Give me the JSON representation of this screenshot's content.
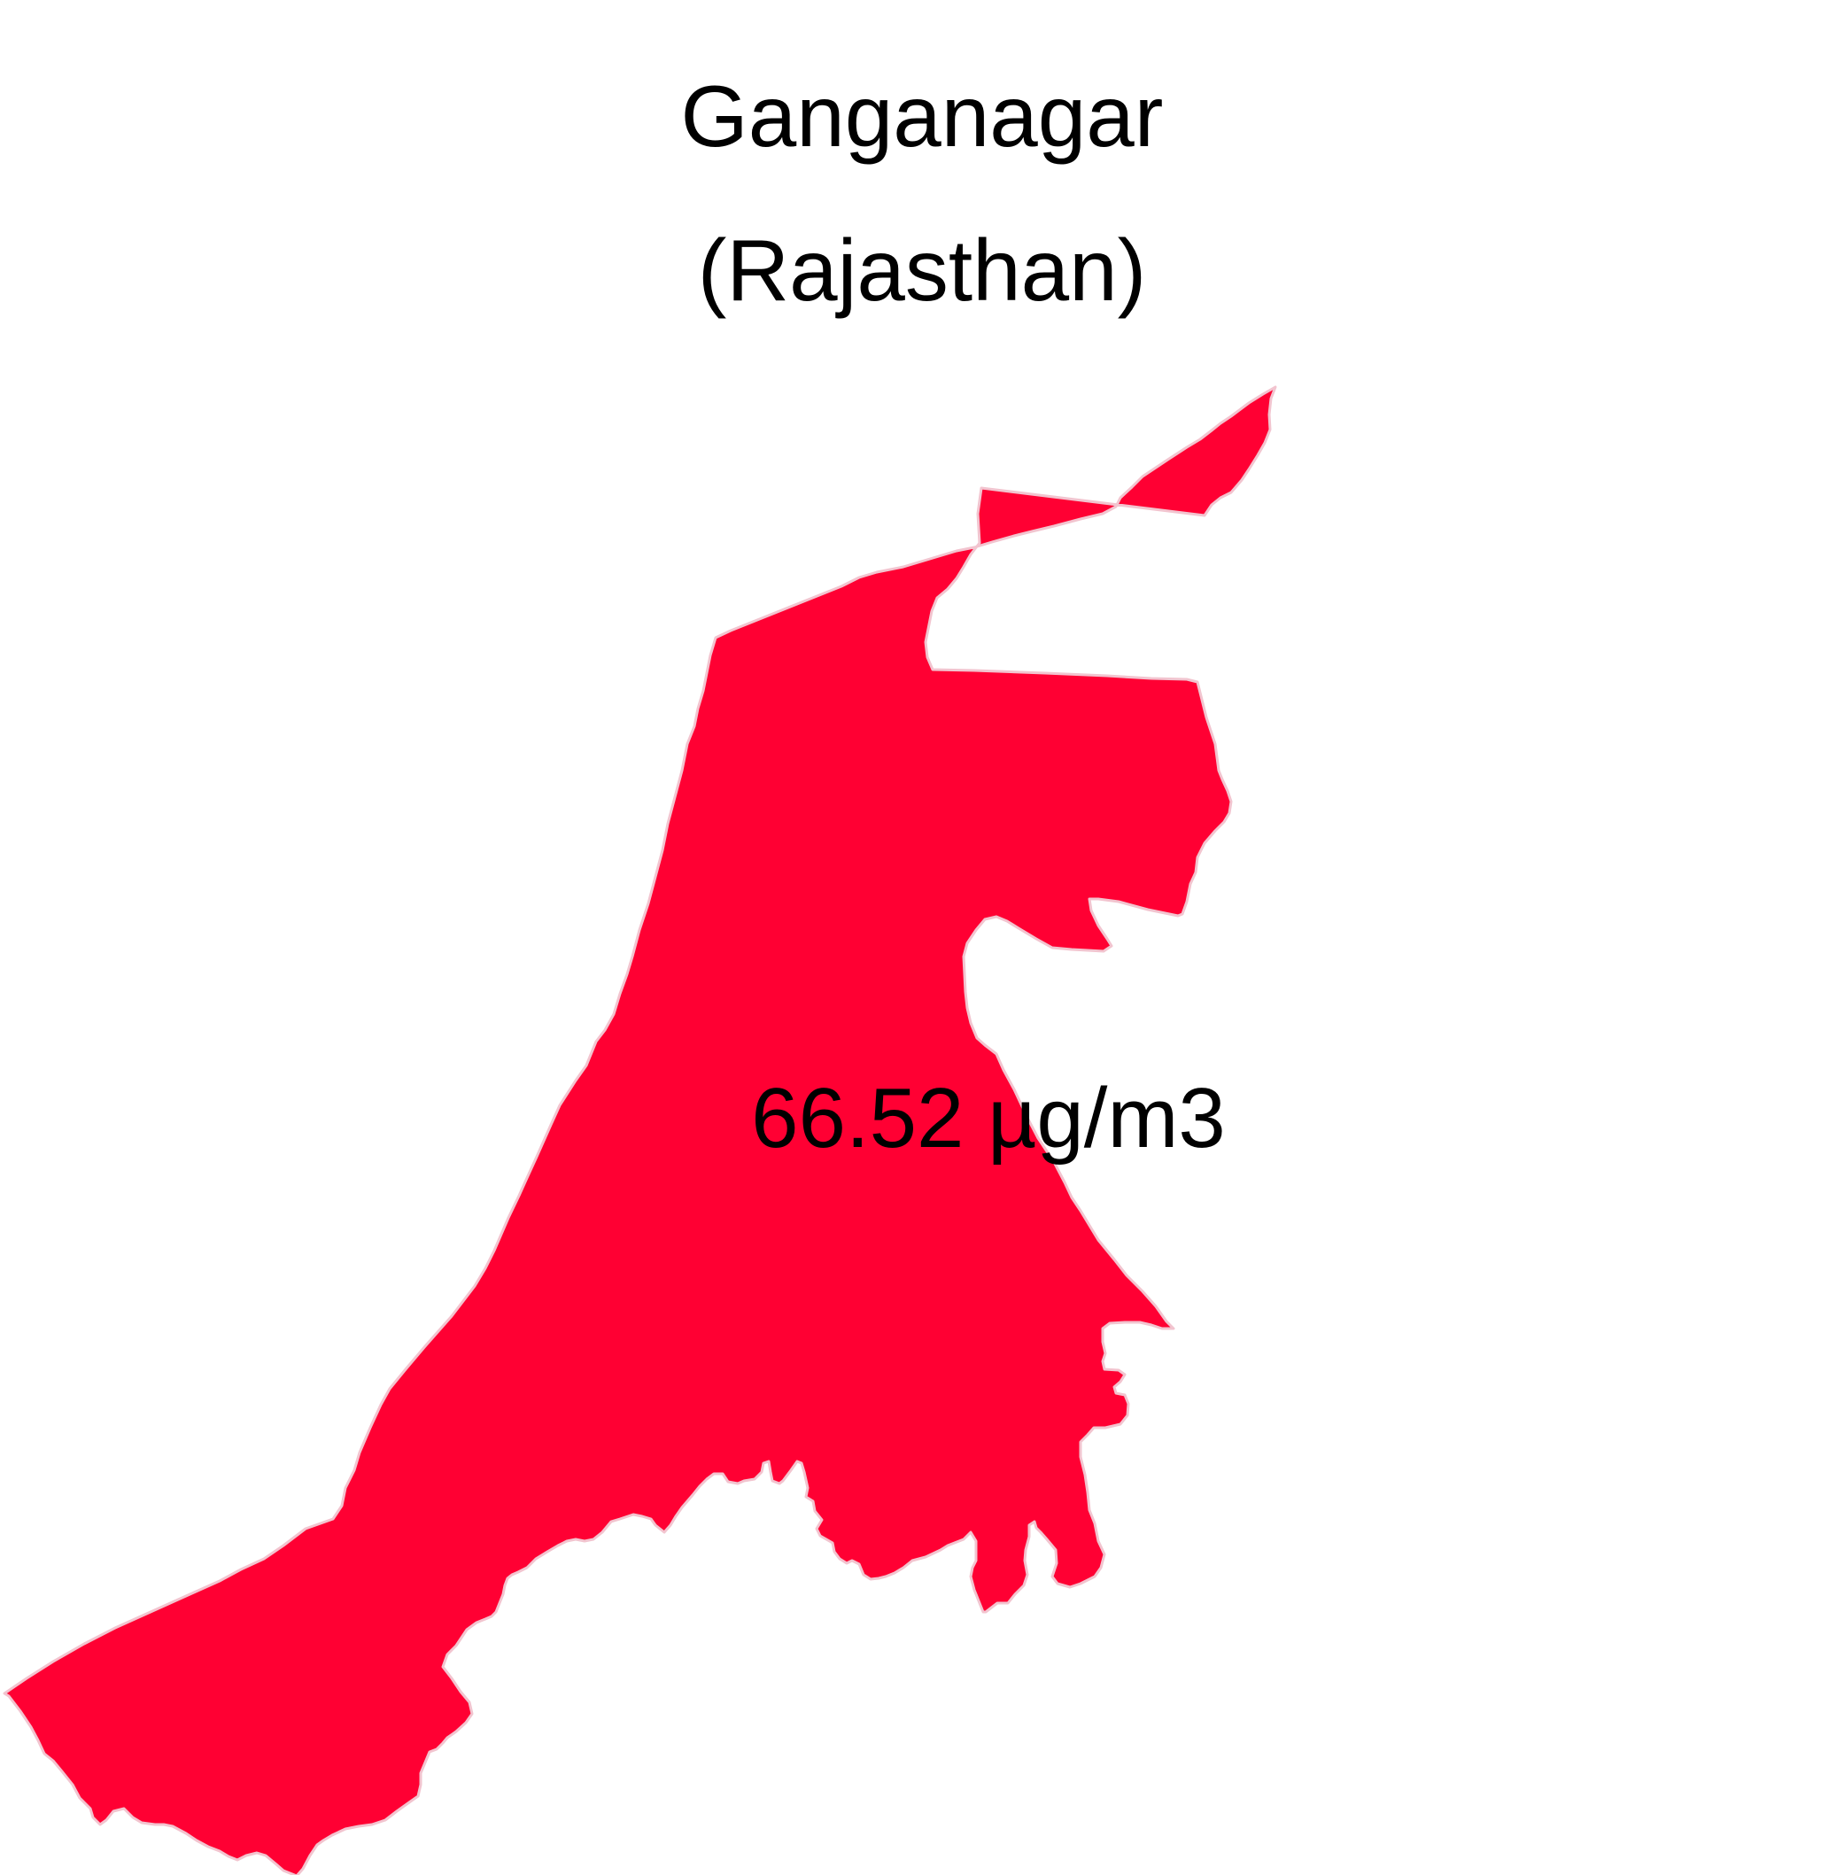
{
  "title": {
    "line1": "Ganganagar",
    "line2": "(Rajasthan)"
  },
  "region": {
    "name": "Ganganagar",
    "state": "Rajasthan",
    "fill_color": "#ff0033",
    "border_color": "#f2c4cf"
  },
  "label": {
    "value": "66.52 µg/m3"
  }
}
